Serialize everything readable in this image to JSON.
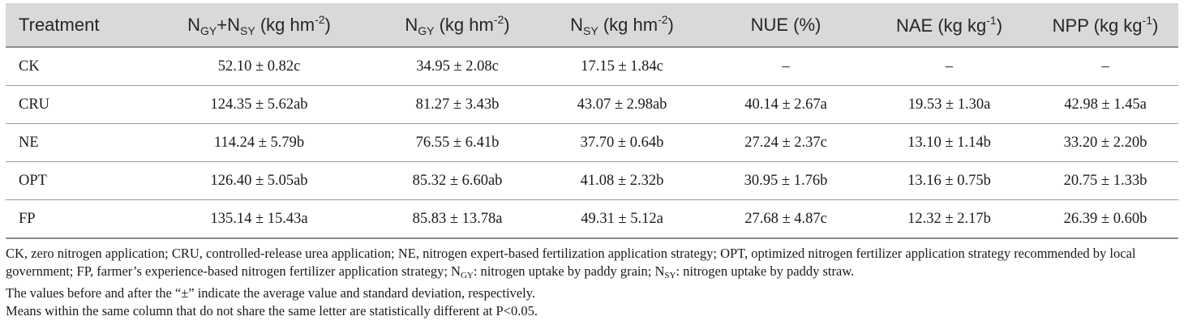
{
  "table": {
    "headers": [
      {
        "parts": [
          {
            "t": "N",
            "s": "n"
          },
          {
            "t": "GY",
            "s": "sub"
          },
          {
            "t": "+N",
            "s": "n"
          },
          {
            "t": "SY",
            "s": "sub"
          },
          {
            "t": " (kg hm",
            "s": "n"
          },
          {
            "t": "-2",
            "s": "sup"
          },
          {
            "t": ")",
            "s": "n"
          }
        ]
      },
      {
        "parts": [
          {
            "t": "N",
            "s": "n"
          },
          {
            "t": "GY",
            "s": "sub"
          },
          {
            "t": " (kg hm",
            "s": "n"
          },
          {
            "t": "-2",
            "s": "sup"
          },
          {
            "t": ")",
            "s": "n"
          }
        ]
      },
      {
        "parts": [
          {
            "t": "N",
            "s": "n"
          },
          {
            "t": "SY",
            "s": "sub"
          },
          {
            "t": " (kg hm",
            "s": "n"
          },
          {
            "t": "-2",
            "s": "sup"
          },
          {
            "t": ")",
            "s": "n"
          }
        ]
      },
      {
        "parts": [
          {
            "t": "NUE (%)",
            "s": "n"
          }
        ]
      },
      {
        "parts": [
          {
            "t": "NAE (kg kg",
            "s": "n"
          },
          {
            "t": "-1",
            "s": "sup"
          },
          {
            "t": ")",
            "s": "n"
          }
        ]
      },
      {
        "parts": [
          {
            "t": "NPP (kg kg",
            "s": "n"
          },
          {
            "t": "-1",
            "s": "sup"
          },
          {
            "t": ")",
            "s": "n"
          }
        ]
      }
    ],
    "first_header": "Treatment",
    "rows": [
      [
        "CK",
        "52.10 ± 0.82c",
        "34.95 ± 2.08c",
        "17.15 ± 1.84c",
        "–",
        "–",
        "–"
      ],
      [
        "CRU",
        "124.35 ± 5.62ab",
        "81.27 ± 3.43b",
        "43.07 ± 2.98ab",
        "40.14 ± 2.67a",
        "19.53 ± 1.30a",
        "42.98 ± 1.45a"
      ],
      [
        "NE",
        "114.24 ± 5.79b",
        "76.55 ± 6.41b",
        "37.70 ± 0.64b",
        "27.24 ± 2.37c",
        "13.10 ± 1.14b",
        "33.20 ± 2.20b"
      ],
      [
        "OPT",
        "126.40 ± 5.05ab",
        "85.32 ± 6.60ab",
        "41.08 ± 2.32b",
        "30.95 ± 1.76b",
        "13.16 ± 0.75b",
        "20.75 ± 1.33b"
      ],
      [
        "FP",
        "135.14 ± 15.43a",
        "85.83 ± 13.78a",
        "49.31 ± 5.12a",
        "27.68 ± 4.87c",
        "12.32 ± 2.17b",
        "26.39 ± 0.60b"
      ]
    ]
  },
  "notes": {
    "line1_parts": [
      {
        "t": "CK, zero nitrogen application; CRU, controlled-release urea application; NE, nitrogen expert-based fertilization application strategy; OPT, optimized nitrogen fertilizer application strategy recommended by local government; FP, farmer’s experience-based nitrogen fertilizer application strategy; N",
        "s": "n"
      },
      {
        "t": "GY",
        "s": "sub"
      },
      {
        "t": ": nitrogen uptake by paddy grain; N",
        "s": "n"
      },
      {
        "t": "SY",
        "s": "sub"
      },
      {
        "t": ": nitrogen uptake by paddy straw.",
        "s": "n"
      }
    ],
    "line2": "The values before and after the “±” indicate the average value and standard deviation, respectively.",
    "line3": "Means within the same column that do not share the same letter are statistically different at P<0.05."
  }
}
